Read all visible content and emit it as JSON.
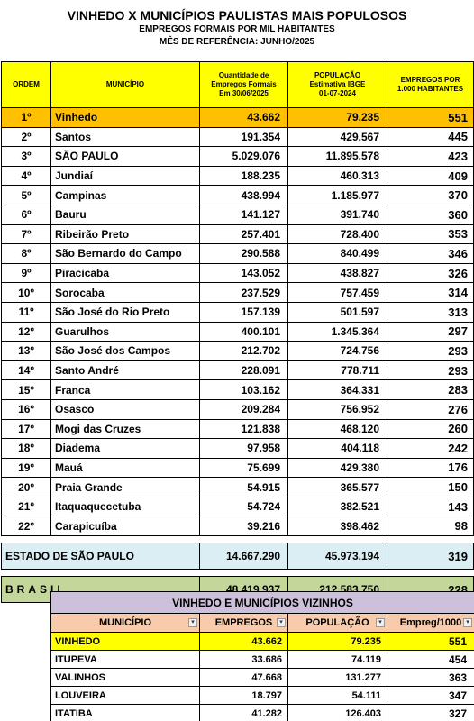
{
  "title": "VINHEDO X MUNICÍPIOS PAULISTAS MAIS POPULOSOS",
  "subtitle": "EMPREGOS FORMAIS POR MIL HABITANTES",
  "reference": "MÊS DE REFERÊNCIA: JUNHO/2025",
  "main_table": {
    "headers": {
      "ordem": "ORDEM",
      "municipio": "MUNICÍPIO",
      "empregos_l1": "Quantidade de",
      "empregos_l2": "Empregos Formais",
      "empregos_l3": "Em 30/06/2025",
      "populacao_l1": "POPULAÇÃO",
      "populacao_l2": "Estimativa IBGE",
      "populacao_l3": "01-07-2024",
      "por_mil_l1": "EMPREGOS POR",
      "por_mil_l2": "1.000 HABITANTES"
    },
    "rows": [
      {
        "ordem": "1º",
        "municipio": "Vinhedo",
        "empregos": "43.662",
        "populacao": "79.235",
        "por_mil": "551"
      },
      {
        "ordem": "2º",
        "municipio": "Santos",
        "empregos": "191.354",
        "populacao": "429.567",
        "por_mil": "445"
      },
      {
        "ordem": "3º",
        "municipio": "SÃO PAULO",
        "empregos": "5.029.076",
        "populacao": "11.895.578",
        "por_mil": "423"
      },
      {
        "ordem": "4º",
        "municipio": "Jundiaí",
        "empregos": "188.235",
        "populacao": "460.313",
        "por_mil": "409"
      },
      {
        "ordem": "5º",
        "municipio": "Campinas",
        "empregos": "438.994",
        "populacao": "1.185.977",
        "por_mil": "370"
      },
      {
        "ordem": "6º",
        "municipio": "Bauru",
        "empregos": "141.127",
        "populacao": "391.740",
        "por_mil": "360"
      },
      {
        "ordem": "7º",
        "municipio": "Ribeirão Preto",
        "empregos": "257.401",
        "populacao": "728.400",
        "por_mil": "353"
      },
      {
        "ordem": "8º",
        "municipio": "São Bernardo do Campo",
        "empregos": "290.588",
        "populacao": "840.499",
        "por_mil": "346"
      },
      {
        "ordem": "9º",
        "municipio": "Piracicaba",
        "empregos": "143.052",
        "populacao": "438.827",
        "por_mil": "326"
      },
      {
        "ordem": "10º",
        "municipio": "Sorocaba",
        "empregos": "237.529",
        "populacao": "757.459",
        "por_mil": "314"
      },
      {
        "ordem": "11º",
        "municipio": "São José do Rio Preto",
        "empregos": "157.139",
        "populacao": "501.597",
        "por_mil": "313"
      },
      {
        "ordem": "12º",
        "municipio": "Guarulhos",
        "empregos": "400.101",
        "populacao": "1.345.364",
        "por_mil": "297"
      },
      {
        "ordem": "13º",
        "municipio": "São José dos Campos",
        "empregos": "212.702",
        "populacao": "724.756",
        "por_mil": "293"
      },
      {
        "ordem": "14º",
        "municipio": "Santo André",
        "empregos": "228.091",
        "populacao": "778.711",
        "por_mil": "293"
      },
      {
        "ordem": "15º",
        "municipio": "Franca",
        "empregos": "103.162",
        "populacao": "364.331",
        "por_mil": "283"
      },
      {
        "ordem": "16º",
        "municipio": "Osasco",
        "empregos": "209.284",
        "populacao": "756.952",
        "por_mil": "276"
      },
      {
        "ordem": "17º",
        "municipio": "Mogi das Cruzes",
        "empregos": "121.838",
        "populacao": "468.120",
        "por_mil": "260"
      },
      {
        "ordem": "18º",
        "municipio": "Diadema",
        "empregos": "97.958",
        "populacao": "404.118",
        "por_mil": "242"
      },
      {
        "ordem": "19º",
        "municipio": "Mauá",
        "empregos": "75.699",
        "populacao": "429.380",
        "por_mil": "176"
      },
      {
        "ordem": "20º",
        "municipio": "Praia Grande",
        "empregos": "54.915",
        "populacao": "365.577",
        "por_mil": "150"
      },
      {
        "ordem": "21º",
        "municipio": "Itaquaquecetuba",
        "empregos": "54.724",
        "populacao": "382.521",
        "por_mil": "143"
      },
      {
        "ordem": "22º",
        "municipio": "Carapicuíba",
        "empregos": "39.216",
        "populacao": "398.462",
        "por_mil": "98"
      }
    ],
    "estado": {
      "label": "ESTADO DE SÃO PAULO",
      "empregos": "14.667.290",
      "populacao": "45.973.194",
      "por_mil": "319"
    },
    "brasil": {
      "label": "BRASIL",
      "empregos": "48.419.937",
      "populacao": "212.583.750",
      "por_mil": "228"
    }
  },
  "vizinhos_table": {
    "title": "VINHEDO E MUNICÍPIOS VIZINHOS",
    "headers": {
      "municipio": "MUNICÍPIO",
      "empregos": "EMPREGOS",
      "populacao": "POPULAÇÃO",
      "por_mil": "Empreg/1000"
    },
    "rows": [
      {
        "municipio": "VINHEDO",
        "empregos": "43.662",
        "populacao": "79.235",
        "por_mil": "551"
      },
      {
        "municipio": "ITUPEVA",
        "empregos": "33.686",
        "populacao": "74.119",
        "por_mil": "454"
      },
      {
        "municipio": "VALINHOS",
        "empregos": "47.668",
        "populacao": "131.277",
        "por_mil": "363"
      },
      {
        "municipio": "LOUVEIRA",
        "empregos": "18.797",
        "populacao": "54.111",
        "por_mil": "347"
      },
      {
        "municipio": "ITATIBA",
        "empregos": "41.282",
        "populacao": "126.403",
        "por_mil": "327"
      }
    ]
  },
  "colors": {
    "header_yellow": "#ffff00",
    "highlight_orange": "#ffc000",
    "estado_blue": "#dbeef3",
    "brasil_green": "#c4d79b",
    "viz_title_purple": "#ccc0da",
    "viz_header_peach": "#f8cbad"
  }
}
